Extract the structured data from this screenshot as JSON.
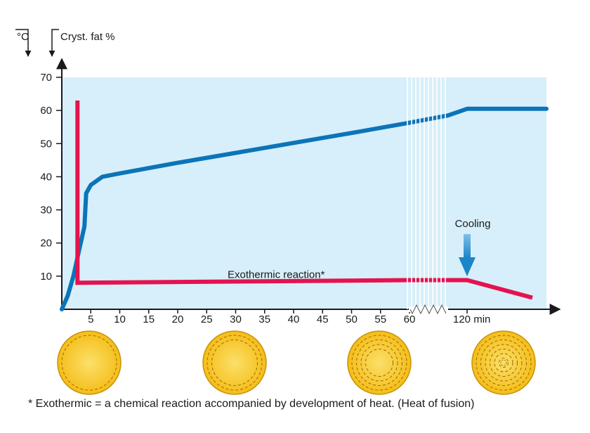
{
  "colors": {
    "background": "#d7effa",
    "crystal_fat_line": "#0c74b8",
    "temperature_line": "#e4134f",
    "cooling_arrow": "#1a86c8",
    "crystal_fill": "#f7c51e"
  },
  "chart_data": {
    "type": "line",
    "title": "",
    "units_label_temperature": "°C",
    "units_label_crystal": "Cryst. fat %",
    "y_range": [
      0,
      70
    ],
    "y_ticks": [
      10,
      20,
      30,
      40,
      50,
      60,
      70
    ],
    "x_ticks": [
      "5",
      "10",
      "15",
      "20",
      "25",
      "30",
      "35",
      "40",
      "45",
      "50",
      "55",
      "60"
    ],
    "x_end_label": "120 min",
    "axis_break_after": 60,
    "series": [
      {
        "key": "crystal_fat",
        "points": [
          [
            0,
            0
          ],
          [
            1,
            4
          ],
          [
            2,
            10
          ],
          [
            3,
            18
          ],
          [
            3.9,
            25
          ],
          [
            4.2,
            35
          ],
          [
            5,
            37.5
          ],
          [
            7,
            40
          ],
          [
            10,
            41
          ],
          [
            20,
            44.2
          ],
          [
            30,
            47.2
          ],
          [
            40,
            50.2
          ],
          [
            50,
            53.2
          ],
          [
            60,
            56.3
          ],
          [
            120,
            60.5
          ]
        ]
      },
      {
        "key": "temperature",
        "points": [
          [
            1,
            63
          ],
          [
            1,
            8
          ],
          [
            60,
            8.8
          ],
          [
            120,
            3.5
          ]
        ]
      }
    ],
    "annotations": [
      {
        "text": "Exothermic reaction*",
        "x": 37,
        "y": 12
      },
      {
        "text": "Cooling",
        "x": 120,
        "y": 25
      }
    ]
  },
  "crystal_stages": [
    "stage-1",
    "stage-2",
    "stage-3",
    "stage-4"
  ],
  "footnote": "* Exothermic = a chemical reaction accompanied by development of heat. (Heat of fusion)"
}
